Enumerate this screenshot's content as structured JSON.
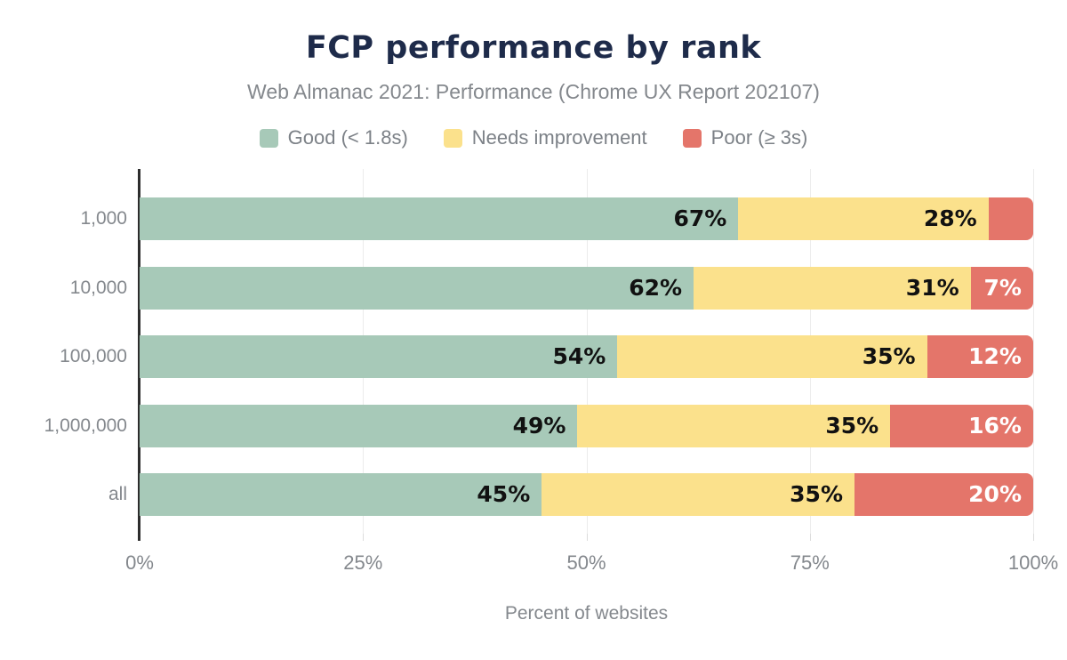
{
  "title": "FCP performance by rank",
  "subtitle": "Web Almanac 2021: Performance (Chrome UX Report 202107)",
  "legend": [
    {
      "label": "Good (< 1.8s)",
      "color": "#a7c9b8"
    },
    {
      "label": "Needs improvement",
      "color": "#fbe18c"
    },
    {
      "label": "Poor (≥ 3s)",
      "color": "#e4756a"
    }
  ],
  "chart_data": {
    "type": "bar",
    "orientation": "horizontal",
    "stacked": true,
    "title": "FCP performance by rank",
    "subtitle": "Web Almanac 2021: Performance (Chrome UX Report 202107)",
    "categories": [
      "1,000",
      "10,000",
      "100,000",
      "1,000,000",
      "all"
    ],
    "series": [
      {
        "name": "Good (< 1.8s)",
        "color": "#a7c9b8",
        "label_color": "#111111",
        "values": [
          67,
          62,
          54,
          49,
          45
        ]
      },
      {
        "name": "Needs improvement",
        "color": "#fbe18c",
        "label_color": "#111111",
        "values": [
          28,
          31,
          35,
          35,
          35
        ]
      },
      {
        "name": "Poor (≥ 3s)",
        "color": "#e4756a",
        "label_color": "#ffffff",
        "values": [
          5,
          7,
          12,
          16,
          20
        ]
      }
    ],
    "data_labels": [
      [
        "67%",
        "28%",
        ""
      ],
      [
        "62%",
        "31%",
        "7%"
      ],
      [
        "54%",
        "35%",
        "12%"
      ],
      [
        "49%",
        "35%",
        "16%"
      ],
      [
        "45%",
        "35%",
        "20%"
      ]
    ],
    "xlabel": "Percent of websites",
    "x_ticks": [
      "0%",
      "25%",
      "50%",
      "75%",
      "100%"
    ],
    "xlim": [
      0,
      100
    ],
    "grid": true,
    "legend_position": "top"
  },
  "colors": {
    "title": "#1e2b4a",
    "muted_text": "#84888d",
    "axis_line": "#2d2d2d",
    "gridline": "#ececec",
    "background": "#ffffff"
  }
}
